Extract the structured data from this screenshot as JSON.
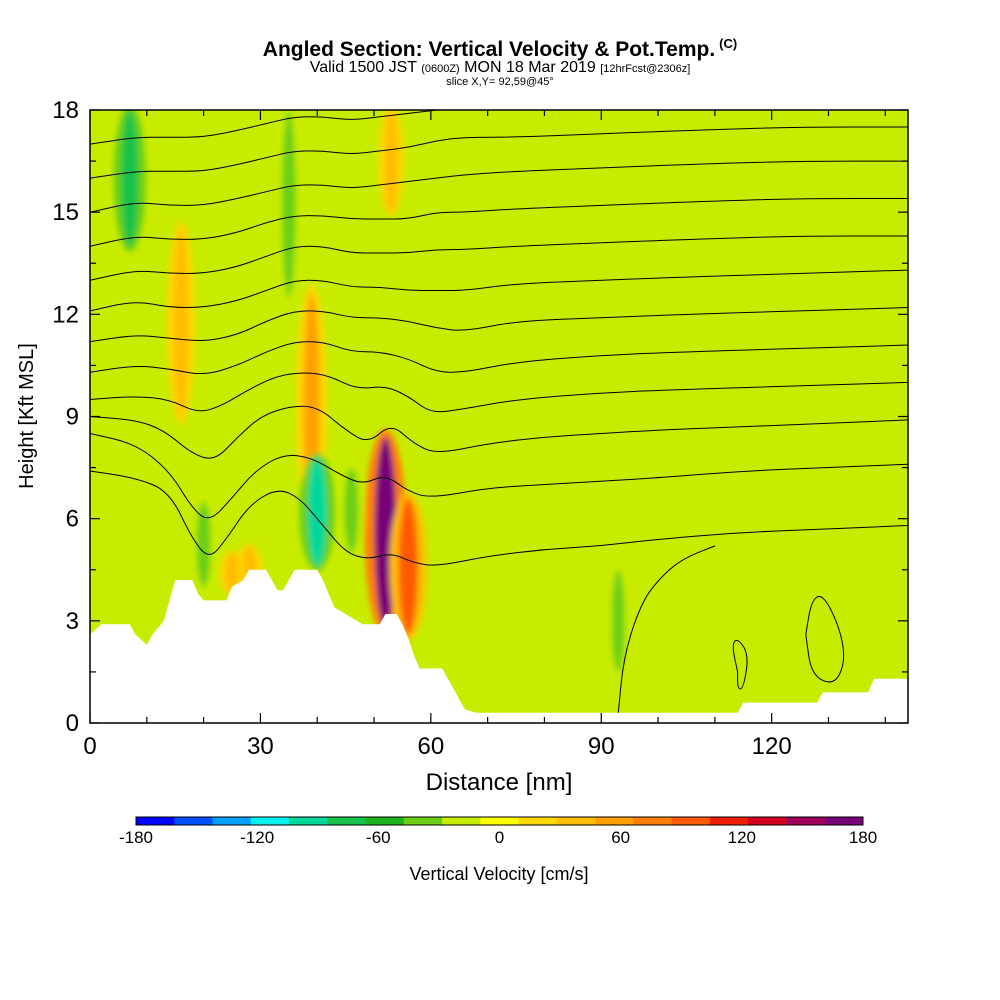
{
  "header": {
    "title": "Angled Section: Vertical Velocity & Pot.Temp.",
    "title_suffix": "(C)",
    "valid_prefix": "Valid 1500 JST",
    "valid_utc": "(0600Z)",
    "valid_date": "MON 18 Mar 2019",
    "valid_forecast": "[12hrFcst@2306z]",
    "slice": "slice X,Y= 92,59@45°"
  },
  "chart_data": {
    "type": "heatmap",
    "title": "Angled Section: Vertical Velocity & Pot.Temp.",
    "xlabel": "Distance [nm]",
    "ylabel": "Height [Kft MSL]",
    "xlim": [
      0,
      144
    ],
    "ylim": [
      0,
      18
    ],
    "x_ticks": [
      "0",
      "30",
      "60",
      "90",
      "120"
    ],
    "x_tick_values": [
      0,
      30,
      60,
      90,
      120
    ],
    "y_ticks": [
      "0",
      "3",
      "6",
      "9",
      "12",
      "15",
      "18"
    ],
    "y_tick_values": [
      0,
      3,
      6,
      9,
      12,
      15,
      18
    ],
    "colorbar": {
      "label": "Vertical Velocity [cm/s]",
      "min": -180,
      "max": 180,
      "tick_labels": [
        "-180",
        "-120",
        "-60",
        "0",
        "60",
        "120",
        "180"
      ],
      "tick_values": [
        -180,
        -120,
        -60,
        0,
        60,
        120,
        180
      ],
      "colors": [
        "#0000ff",
        "#0050ff",
        "#00a0ff",
        "#00f0f0",
        "#00d89a",
        "#19c24a",
        "#1eb41e",
        "#6ccf14",
        "#c8ec00",
        "#ffff00",
        "#ffd700",
        "#ffbe00",
        "#ffa000",
        "#ff8000",
        "#ff5a00",
        "#f01e00",
        "#d2001e",
        "#a0005a",
        "#780078"
      ]
    },
    "background_fill": "#c8ec00",
    "updrafts": [
      {
        "x": 52,
        "z0": 2.8,
        "z1": 8.4,
        "w": 170
      },
      {
        "x": 56,
        "z0": 2.6,
        "z1": 6.6,
        "w": 95
      },
      {
        "x": 39,
        "z0": 6.0,
        "z1": 12.6,
        "w": 60
      },
      {
        "x": 16,
        "z0": 9.0,
        "z1": 14.5,
        "w": 45
      },
      {
        "x": 28,
        "z0": 3.8,
        "z1": 5.2,
        "w": 40
      },
      {
        "x": 25,
        "z0": 3.8,
        "z1": 5.0,
        "w": 35
      },
      {
        "x": 53,
        "z0": 15.0,
        "z1": 18.0,
        "w": 30
      }
    ],
    "downdrafts": [
      {
        "x": 40,
        "z0": 4.6,
        "z1": 7.8,
        "w": -90
      },
      {
        "x": 7,
        "z0": 14.0,
        "z1": 18.0,
        "w": -70
      },
      {
        "x": 46,
        "z0": 5.0,
        "z1": 7.5,
        "w": -45
      },
      {
        "x": 20,
        "z0": 4.0,
        "z1": 6.5,
        "w": -45
      },
      {
        "x": 35,
        "z0": 12.5,
        "z1": 18.0,
        "w": -40
      },
      {
        "x": 93,
        "z0": 1.5,
        "z1": 4.5,
        "w": -30
      }
    ],
    "terrain": [
      [
        0,
        2.6
      ],
      [
        2,
        2.9
      ],
      [
        7,
        2.9
      ],
      [
        8,
        2.6
      ],
      [
        10,
        2.3
      ],
      [
        11,
        2.6
      ],
      [
        13,
        3.0
      ],
      [
        14,
        3.6
      ],
      [
        15,
        4.2
      ],
      [
        18,
        4.2
      ],
      [
        19,
        3.8
      ],
      [
        20,
        3.6
      ],
      [
        24,
        3.6
      ],
      [
        25,
        4.0
      ],
      [
        27,
        4.2
      ],
      [
        28,
        4.5
      ],
      [
        31,
        4.5
      ],
      [
        32,
        4.2
      ],
      [
        33,
        3.9
      ],
      [
        34,
        3.9
      ],
      [
        35,
        4.2
      ],
      [
        36,
        4.5
      ],
      [
        40,
        4.5
      ],
      [
        41,
        4.2
      ],
      [
        42,
        3.8
      ],
      [
        43,
        3.4
      ],
      [
        45,
        3.2
      ],
      [
        48,
        2.9
      ],
      [
        51,
        2.9
      ],
      [
        52,
        3.2
      ],
      [
        54,
        3.2
      ],
      [
        55,
        2.9
      ],
      [
        56,
        2.5
      ],
      [
        57,
        2.0
      ],
      [
        58,
        1.6
      ],
      [
        62,
        1.6
      ],
      [
        63,
        1.3
      ],
      [
        64,
        1.0
      ],
      [
        65,
        0.7
      ],
      [
        66,
        0.4
      ],
      [
        68,
        0.3
      ],
      [
        88,
        0.3
      ],
      [
        114,
        0.3
      ],
      [
        115,
        0.6
      ],
      [
        128,
        0.6
      ],
      [
        129,
        0.9
      ],
      [
        137,
        0.9
      ],
      [
        138,
        1.3
      ],
      [
        144,
        1.3
      ]
    ],
    "theta_contours": [
      [
        [
          0,
          7.4
        ],
        [
          8,
          7.2
        ],
        [
          14,
          6.8
        ],
        [
          18,
          5.4
        ],
        [
          21,
          4.8
        ],
        [
          24,
          5.4
        ],
        [
          28,
          6.4
        ],
        [
          33,
          6.9
        ],
        [
          37,
          6.6
        ],
        [
          41,
          5.8
        ],
        [
          45,
          5.0
        ],
        [
          49,
          4.8
        ],
        [
          53,
          5.0
        ],
        [
          57,
          4.7
        ],
        [
          61,
          4.6
        ],
        [
          70,
          4.9
        ],
        [
          80,
          5.1
        ],
        [
          90,
          5.2
        ],
        [
          100,
          5.4
        ],
        [
          115,
          5.6
        ],
        [
          130,
          5.7
        ],
        [
          144,
          5.8
        ]
      ],
      [
        [
          0,
          8.5
        ],
        [
          8,
          8.2
        ],
        [
          14,
          7.4
        ],
        [
          18,
          6.3
        ],
        [
          21,
          5.9
        ],
        [
          25,
          6.6
        ],
        [
          29,
          7.4
        ],
        [
          34,
          7.9
        ],
        [
          39,
          7.8
        ],
        [
          44,
          7.3
        ],
        [
          48,
          7.0
        ],
        [
          52,
          7.3
        ],
        [
          56,
          6.8
        ],
        [
          60,
          6.6
        ],
        [
          70,
          6.9
        ],
        [
          80,
          7.0
        ],
        [
          90,
          7.1
        ],
        [
          100,
          7.2
        ],
        [
          115,
          7.4
        ],
        [
          130,
          7.5
        ],
        [
          144,
          7.6
        ]
      ],
      [
        [
          0,
          9.0
        ],
        [
          8,
          8.9
        ],
        [
          13,
          8.6
        ],
        [
          18,
          7.9
        ],
        [
          22,
          7.7
        ],
        [
          26,
          8.4
        ],
        [
          30,
          9.0
        ],
        [
          35,
          9.3
        ],
        [
          40,
          9.3
        ],
        [
          45,
          8.6
        ],
        [
          49,
          8.2
        ],
        [
          53,
          8.8
        ],
        [
          57,
          8.2
        ],
        [
          61,
          7.9
        ],
        [
          70,
          8.2
        ],
        [
          80,
          8.4
        ],
        [
          90,
          8.5
        ],
        [
          100,
          8.6
        ],
        [
          115,
          8.7
        ],
        [
          130,
          8.8
        ],
        [
          144,
          8.9
        ]
      ],
      [
        [
          0,
          9.5
        ],
        [
          8,
          9.6
        ],
        [
          14,
          9.5
        ],
        [
          19,
          9.1
        ],
        [
          23,
          9.3
        ],
        [
          28,
          9.8
        ],
        [
          33,
          10.2
        ],
        [
          38,
          10.3
        ],
        [
          42,
          10.2
        ],
        [
          47,
          9.8
        ],
        [
          52,
          9.9
        ],
        [
          56,
          9.6
        ],
        [
          60,
          9.1
        ],
        [
          65,
          9.2
        ],
        [
          75,
          9.5
        ],
        [
          90,
          9.7
        ],
        [
          105,
          9.8
        ],
        [
          125,
          9.9
        ],
        [
          144,
          10.0
        ]
      ],
      [
        [
          0,
          10.3
        ],
        [
          8,
          10.5
        ],
        [
          14,
          10.4
        ],
        [
          20,
          10.2
        ],
        [
          26,
          10.5
        ],
        [
          31,
          10.9
        ],
        [
          36,
          11.2
        ],
        [
          41,
          11.2
        ],
        [
          46,
          10.9
        ],
        [
          51,
          10.9
        ],
        [
          56,
          10.7
        ],
        [
          61,
          10.3
        ],
        [
          66,
          10.3
        ],
        [
          75,
          10.6
        ],
        [
          90,
          10.8
        ],
        [
          105,
          10.9
        ],
        [
          125,
          11.0
        ],
        [
          144,
          11.1
        ]
      ],
      [
        [
          0,
          11.2
        ],
        [
          8,
          11.4
        ],
        [
          14,
          11.3
        ],
        [
          20,
          11.2
        ],
        [
          26,
          11.4
        ],
        [
          31,
          11.8
        ],
        [
          36,
          12.1
        ],
        [
          41,
          12.1
        ],
        [
          46,
          11.9
        ],
        [
          51,
          11.9
        ],
        [
          56,
          11.8
        ],
        [
          61,
          11.6
        ],
        [
          66,
          11.5
        ],
        [
          75,
          11.8
        ],
        [
          90,
          11.9
        ],
        [
          105,
          12.0
        ],
        [
          125,
          12.1
        ],
        [
          144,
          12.2
        ]
      ],
      [
        [
          0,
          12.1
        ],
        [
          8,
          12.4
        ],
        [
          14,
          12.2
        ],
        [
          20,
          12.2
        ],
        [
          26,
          12.4
        ],
        [
          31,
          12.7
        ],
        [
          36,
          13.0
        ],
        [
          41,
          13.0
        ],
        [
          46,
          12.8
        ],
        [
          51,
          12.8
        ],
        [
          56,
          12.7
        ],
        [
          61,
          12.7
        ],
        [
          66,
          12.7
        ],
        [
          75,
          12.9
        ],
        [
          90,
          13.0
        ],
        [
          105,
          13.1
        ],
        [
          125,
          13.2
        ],
        [
          144,
          13.3
        ]
      ],
      [
        [
          0,
          13.0
        ],
        [
          8,
          13.3
        ],
        [
          14,
          13.2
        ],
        [
          20,
          13.2
        ],
        [
          26,
          13.4
        ],
        [
          31,
          13.7
        ],
        [
          36,
          14.0
        ],
        [
          41,
          14.0
        ],
        [
          46,
          13.8
        ],
        [
          51,
          13.8
        ],
        [
          56,
          13.8
        ],
        [
          61,
          13.9
        ],
        [
          66,
          13.9
        ],
        [
          75,
          14.0
        ],
        [
          90,
          14.1
        ],
        [
          105,
          14.2
        ],
        [
          125,
          14.3
        ],
        [
          144,
          14.3
        ]
      ],
      [
        [
          0,
          14.0
        ],
        [
          8,
          14.3
        ],
        [
          14,
          14.2
        ],
        [
          20,
          14.2
        ],
        [
          26,
          14.4
        ],
        [
          31,
          14.7
        ],
        [
          36,
          14.9
        ],
        [
          41,
          14.9
        ],
        [
          46,
          14.8
        ],
        [
          51,
          14.8
        ],
        [
          56,
          14.8
        ],
        [
          61,
          15.0
        ],
        [
          66,
          15.0
        ],
        [
          75,
          15.1
        ],
        [
          90,
          15.2
        ],
        [
          105,
          15.3
        ],
        [
          125,
          15.4
        ],
        [
          144,
          15.4
        ]
      ],
      [
        [
          0,
          15.0
        ],
        [
          8,
          15.3
        ],
        [
          14,
          15.2
        ],
        [
          20,
          15.2
        ],
        [
          26,
          15.4
        ],
        [
          31,
          15.6
        ],
        [
          36,
          15.8
        ],
        [
          41,
          15.8
        ],
        [
          46,
          15.7
        ],
        [
          51,
          15.8
        ],
        [
          56,
          15.9
        ],
        [
          61,
          16.0
        ],
        [
          66,
          16.1
        ],
        [
          75,
          16.2
        ],
        [
          90,
          16.3
        ],
        [
          105,
          16.4
        ],
        [
          125,
          16.5
        ],
        [
          144,
          16.5
        ]
      ],
      [
        [
          0,
          16.0
        ],
        [
          8,
          16.2
        ],
        [
          14,
          16.2
        ],
        [
          20,
          16.2
        ],
        [
          26,
          16.4
        ],
        [
          31,
          16.6
        ],
        [
          36,
          16.8
        ],
        [
          41,
          16.8
        ],
        [
          46,
          16.7
        ],
        [
          51,
          16.8
        ],
        [
          56,
          16.9
        ],
        [
          61,
          17.1
        ],
        [
          66,
          17.2
        ],
        [
          75,
          17.2
        ],
        [
          90,
          17.3
        ],
        [
          105,
          17.4
        ],
        [
          125,
          17.5
        ],
        [
          144,
          17.5
        ]
      ],
      [
        [
          0,
          17.0
        ],
        [
          8,
          17.2
        ],
        [
          14,
          17.2
        ],
        [
          20,
          17.2
        ],
        [
          26,
          17.4
        ],
        [
          31,
          17.6
        ],
        [
          36,
          17.8
        ],
        [
          41,
          17.8
        ],
        [
          46,
          17.7
        ],
        [
          51,
          17.8
        ],
        [
          56,
          17.9
        ],
        [
          61,
          18.0
        ]
      ]
    ],
    "closed_contours": [
      [
        [
          93,
          0.3
        ],
        [
          94,
          2.0
        ],
        [
          97,
          3.5
        ],
        [
          100,
          4.2
        ],
        [
          104,
          4.8
        ],
        [
          110,
          5.2
        ]
      ],
      [
        [
          114,
          1.5
        ],
        [
          113,
          2.3
        ],
        [
          114,
          2.5
        ],
        [
          116,
          2.0
        ],
        [
          115,
          1.0
        ],
        [
          114,
          1.0
        ],
        [
          114,
          1.5
        ]
      ],
      [
        [
          126,
          2.6
        ],
        [
          127,
          3.6
        ],
        [
          129,
          3.8
        ],
        [
          132,
          2.8
        ],
        [
          133,
          1.8
        ],
        [
          131,
          1.1
        ],
        [
          127,
          1.4
        ],
        [
          126,
          2.6
        ]
      ]
    ]
  }
}
